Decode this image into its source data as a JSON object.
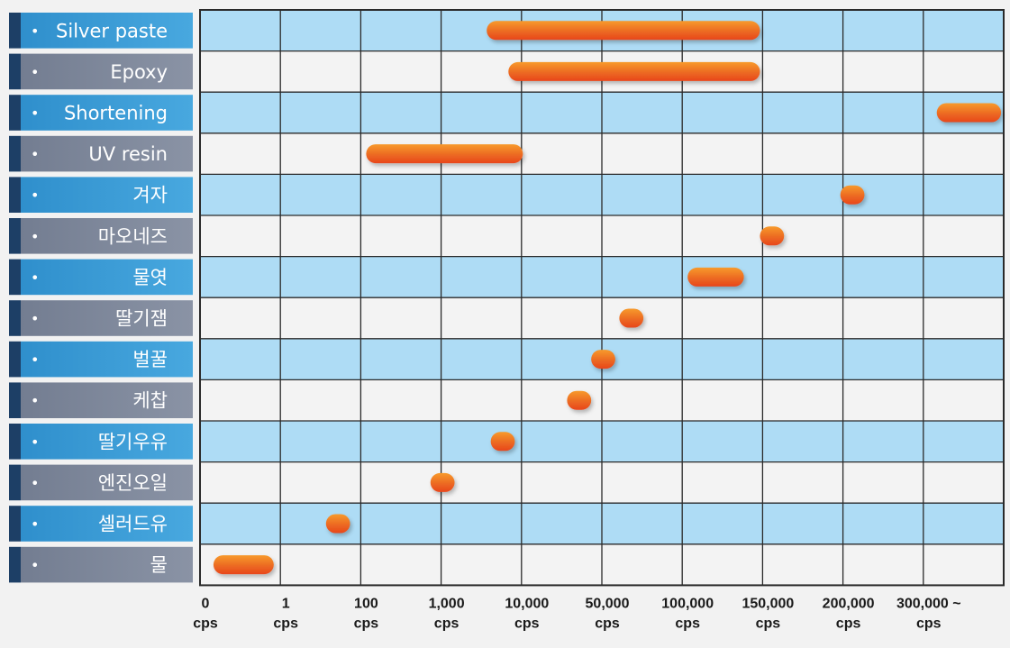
{
  "chart_data": {
    "type": "bar",
    "orientation": "horizontal-range",
    "title": "",
    "xlabel": "",
    "ylabel": "",
    "x_ticks": [
      {
        "value": "0",
        "unit": "cps"
      },
      {
        "value": "1",
        "unit": "cps"
      },
      {
        "value": "100",
        "unit": "cps"
      },
      {
        "value": "1,000",
        "unit": "cps"
      },
      {
        "value": "10,000",
        "unit": "cps"
      },
      {
        "value": "50,000",
        "unit": "cps"
      },
      {
        "value": "100,000",
        "unit": "cps"
      },
      {
        "value": "150,000",
        "unit": "cps"
      },
      {
        "value": "200,000",
        "unit": "cps"
      },
      {
        "value": "300,000 ~",
        "unit": "cps"
      }
    ],
    "bullet": "•",
    "categories": [
      "Silver paste",
      "Epoxy",
      "Shortening",
      "UV resin",
      "겨자",
      "마오네즈",
      "물엿",
      "딸기잼",
      "벌꿀",
      "케찹",
      "딸기우유",
      "엔진오일",
      "셀러드유",
      "물"
    ],
    "ranges": [
      {
        "start_tick": 3.5,
        "end_tick": 6.9
      },
      {
        "start_tick": 3.77,
        "end_tick": 6.9
      },
      {
        "start_tick": 9.1,
        "end_tick": 9.9
      },
      {
        "start_tick": 2.0,
        "end_tick": 3.95
      },
      {
        "start_tick": 7.9,
        "end_tick": 8.2
      },
      {
        "start_tick": 6.9,
        "end_tick": 7.2
      },
      {
        "start_tick": 6.0,
        "end_tick": 6.7
      },
      {
        "start_tick": 5.15,
        "end_tick": 5.45
      },
      {
        "start_tick": 4.8,
        "end_tick": 5.1
      },
      {
        "start_tick": 4.5,
        "end_tick": 4.8
      },
      {
        "start_tick": 3.55,
        "end_tick": 3.85
      },
      {
        "start_tick": 2.8,
        "end_tick": 3.1
      },
      {
        "start_tick": 1.5,
        "end_tick": 1.8
      },
      {
        "start_tick": 0.1,
        "end_tick": 0.85
      }
    ],
    "grid": true,
    "legend": "none"
  },
  "colors": {
    "label_blue": "#3a9bd5",
    "label_gray": "#7d879a",
    "accent_navy": "#1d3f66",
    "row_blue": "#aedcf5",
    "row_light": "#f3f3f3",
    "grid_line": "#2a2a2a",
    "bar_start": "#e8461c",
    "bar_end": "#f79a2c"
  }
}
